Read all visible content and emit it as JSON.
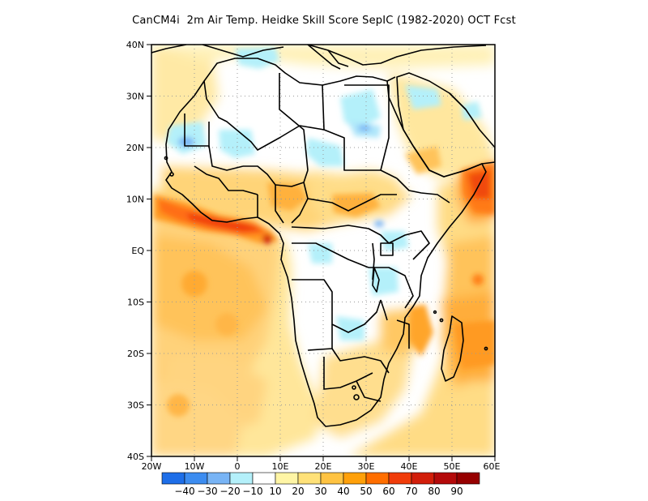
{
  "title": "CanCM4i  2m Air Temp. Heidke Skill Score SepIC (1982-2020) OCT Fcst",
  "map": {
    "region": "Africa",
    "lon_range": [
      -20,
      60
    ],
    "lat_range": [
      -40,
      40
    ],
    "lat_labels": [
      "40N",
      "30N",
      "20N",
      "10N",
      "EQ",
      "10S",
      "20S",
      "30S",
      "40S"
    ],
    "lon_labels": [
      "20W",
      "10W",
      "0",
      "10E",
      "20E",
      "30E",
      "40E",
      "50E",
      "60E"
    ],
    "grid": true,
    "background_color": "#ffffff"
  },
  "colorbar": {
    "labels": [
      "-40",
      "-30",
      "-20",
      "-10",
      "10",
      "20",
      "30",
      "40",
      "50",
      "60",
      "70",
      "80",
      "90"
    ],
    "colors": [
      "#1e6ee8",
      "#3c8cf0",
      "#78b4f5",
      "#b4f0fa",
      "#ffffff",
      "#fff5a5",
      "#ffe178",
      "#ffc342",
      "#ffa00a",
      "#ff6e00",
      "#f03c0a",
      "#d21e0a",
      "#b40a0a",
      "#960000"
    ]
  }
}
